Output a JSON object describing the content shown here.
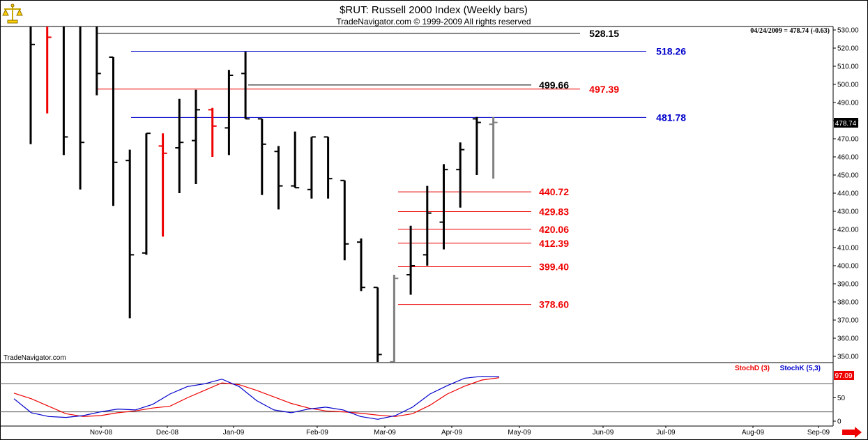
{
  "title": "$RUT:  Russell 2000 Index  (Weekly bars)",
  "subtitle": "TradeNavigator.com © 1999-2009 All rights reserved",
  "watermark": "TradeNavigator.com",
  "quote": "04/24/2009 = 478.74 (-0.63)",
  "last_price_badge": "478.74",
  "stoch_badge": "97.09",
  "icons": {
    "logo": "scale-balance-icon",
    "scroll": "right-arrow-icon"
  },
  "chart_data": {
    "type": "ohlc",
    "title": "$RUT:  Russell 2000 Index  (Weekly bars)",
    "ylim": [
      345,
      532
    ],
    "y_ticks": [
      "350.00",
      "360.00",
      "370.00",
      "380.00",
      "390.00",
      "400.00",
      "410.00",
      "420.00",
      "430.00",
      "440.00",
      "450.00",
      "460.00",
      "470.00",
      "480.00",
      "490.00",
      "500.00",
      "510.00",
      "520.00",
      "530.00"
    ],
    "x_labels": [
      "Nov-08",
      "Dec-08",
      "Jan-09",
      "Feb-09",
      "Mar-09",
      "Apr-09",
      "May-09",
      "Jun-09",
      "Jul-09",
      "Aug-09",
      "Sep-09"
    ],
    "bars": [
      {
        "open": 532,
        "high": 532,
        "low": 467,
        "close": 522,
        "color": "black"
      },
      {
        "open": 532,
        "high": 532,
        "low": 484,
        "close": 526,
        "color": "red"
      },
      {
        "open": 532,
        "high": 532,
        "low": 461,
        "close": 471,
        "color": "black"
      },
      {
        "open": 532,
        "high": 532,
        "low": 442,
        "close": 468,
        "color": "black"
      },
      {
        "open": 532,
        "high": 532,
        "low": 494,
        "close": 506,
        "color": "black"
      },
      {
        "open": 515,
        "high": 515,
        "low": 433,
        "close": 457,
        "color": "black"
      },
      {
        "open": 458,
        "high": 464,
        "low": 371,
        "close": 406,
        "color": "black"
      },
      {
        "open": 407,
        "high": 473,
        "low": 406,
        "close": 473,
        "color": "black"
      },
      {
        "open": 466,
        "high": 473,
        "low": 416,
        "close": 462,
        "color": "red"
      },
      {
        "open": 465,
        "high": 492,
        "low": 440,
        "close": 468,
        "color": "black"
      },
      {
        "open": 469,
        "high": 497,
        "low": 445,
        "close": 486,
        "color": "black"
      },
      {
        "open": 486,
        "high": 487,
        "low": 460,
        "close": 477,
        "color": "red"
      },
      {
        "open": 476,
        "high": 508,
        "low": 461,
        "close": 505,
        "color": "black"
      },
      {
        "open": 506,
        "high": 518,
        "low": 481,
        "close": 481,
        "color": "black"
      },
      {
        "open": 481,
        "high": 481,
        "low": 439,
        "close": 467,
        "color": "black"
      },
      {
        "open": 463,
        "high": 466,
        "low": 431,
        "close": 444,
        "color": "black"
      },
      {
        "open": 444,
        "high": 474,
        "low": 443,
        "close": 443,
        "color": "black"
      },
      {
        "open": 442,
        "high": 471,
        "low": 437,
        "close": 471,
        "color": "black"
      },
      {
        "open": 471,
        "high": 471,
        "low": 437,
        "close": 448,
        "color": "black"
      },
      {
        "open": 447,
        "high": 447,
        "low": 403,
        "close": 412,
        "color": "black"
      },
      {
        "open": 413,
        "high": 415,
        "low": 386,
        "close": 388,
        "color": "black"
      },
      {
        "open": 388,
        "high": 388,
        "low": 345,
        "close": 351,
        "color": "black"
      },
      {
        "open": 347,
        "high": 395,
        "low": 345,
        "close": 393,
        "color": "gray"
      },
      {
        "open": 395,
        "high": 422,
        "low": 384,
        "close": 400,
        "color": "black"
      },
      {
        "open": 406,
        "high": 444,
        "low": 400,
        "close": 429,
        "color": "black"
      },
      {
        "open": 424,
        "high": 456,
        "low": 409,
        "close": 453,
        "color": "black"
      },
      {
        "open": 453,
        "high": 468,
        "low": 432,
        "close": 464,
        "color": "black"
      },
      {
        "open": 481,
        "high": 482,
        "low": 450,
        "close": 479,
        "color": "black"
      },
      {
        "open": 478,
        "high": 482,
        "low": 448,
        "close": 479,
        "color": "gray"
      }
    ],
    "levels": [
      {
        "value": 528.15,
        "label": "528.15",
        "color": "#000000"
      },
      {
        "value": 518.26,
        "label": "518.26",
        "color": "#0000cc"
      },
      {
        "value": 499.66,
        "label": "499.66",
        "color": "#000000"
      },
      {
        "value": 497.39,
        "label": "497.39",
        "color": "#ee0000"
      },
      {
        "value": 481.78,
        "label": "481.78",
        "color": "#0000cc"
      },
      {
        "value": 440.72,
        "label": "440.72",
        "color": "#ee0000"
      },
      {
        "value": 429.83,
        "label": "429.83",
        "color": "#ee0000"
      },
      {
        "value": 420.06,
        "label": "420.06",
        "color": "#ee0000"
      },
      {
        "value": 412.39,
        "label": "412.39",
        "color": "#ee0000"
      },
      {
        "value": 399.4,
        "label": "399.40",
        "color": "#ee0000"
      },
      {
        "value": 378.6,
        "label": "378.60",
        "color": "#ee0000"
      }
    ],
    "stochastic": {
      "ylim": [
        0,
        100
      ],
      "y_ticks": [
        "0",
        "50"
      ],
      "reference_lines": [
        20,
        80
      ],
      "series": [
        {
          "name": "StochD (3)",
          "color": "#ee0000",
          "values": [
            60,
            48,
            32,
            16,
            10,
            12,
            18,
            22,
            28,
            32,
            50,
            66,
            82,
            78,
            66,
            52,
            38,
            28,
            22,
            20,
            17,
            13,
            10,
            16,
            34,
            58,
            75,
            88,
            93
          ]
        },
        {
          "name": "StochK (5,3)",
          "color": "#0000cc",
          "values": [
            48,
            18,
            10,
            8,
            12,
            20,
            26,
            24,
            36,
            58,
            74,
            80,
            90,
            74,
            44,
            24,
            18,
            26,
            30,
            24,
            10,
            4,
            12,
            30,
            58,
            76,
            92,
            96,
            95
          ]
        }
      ]
    }
  }
}
